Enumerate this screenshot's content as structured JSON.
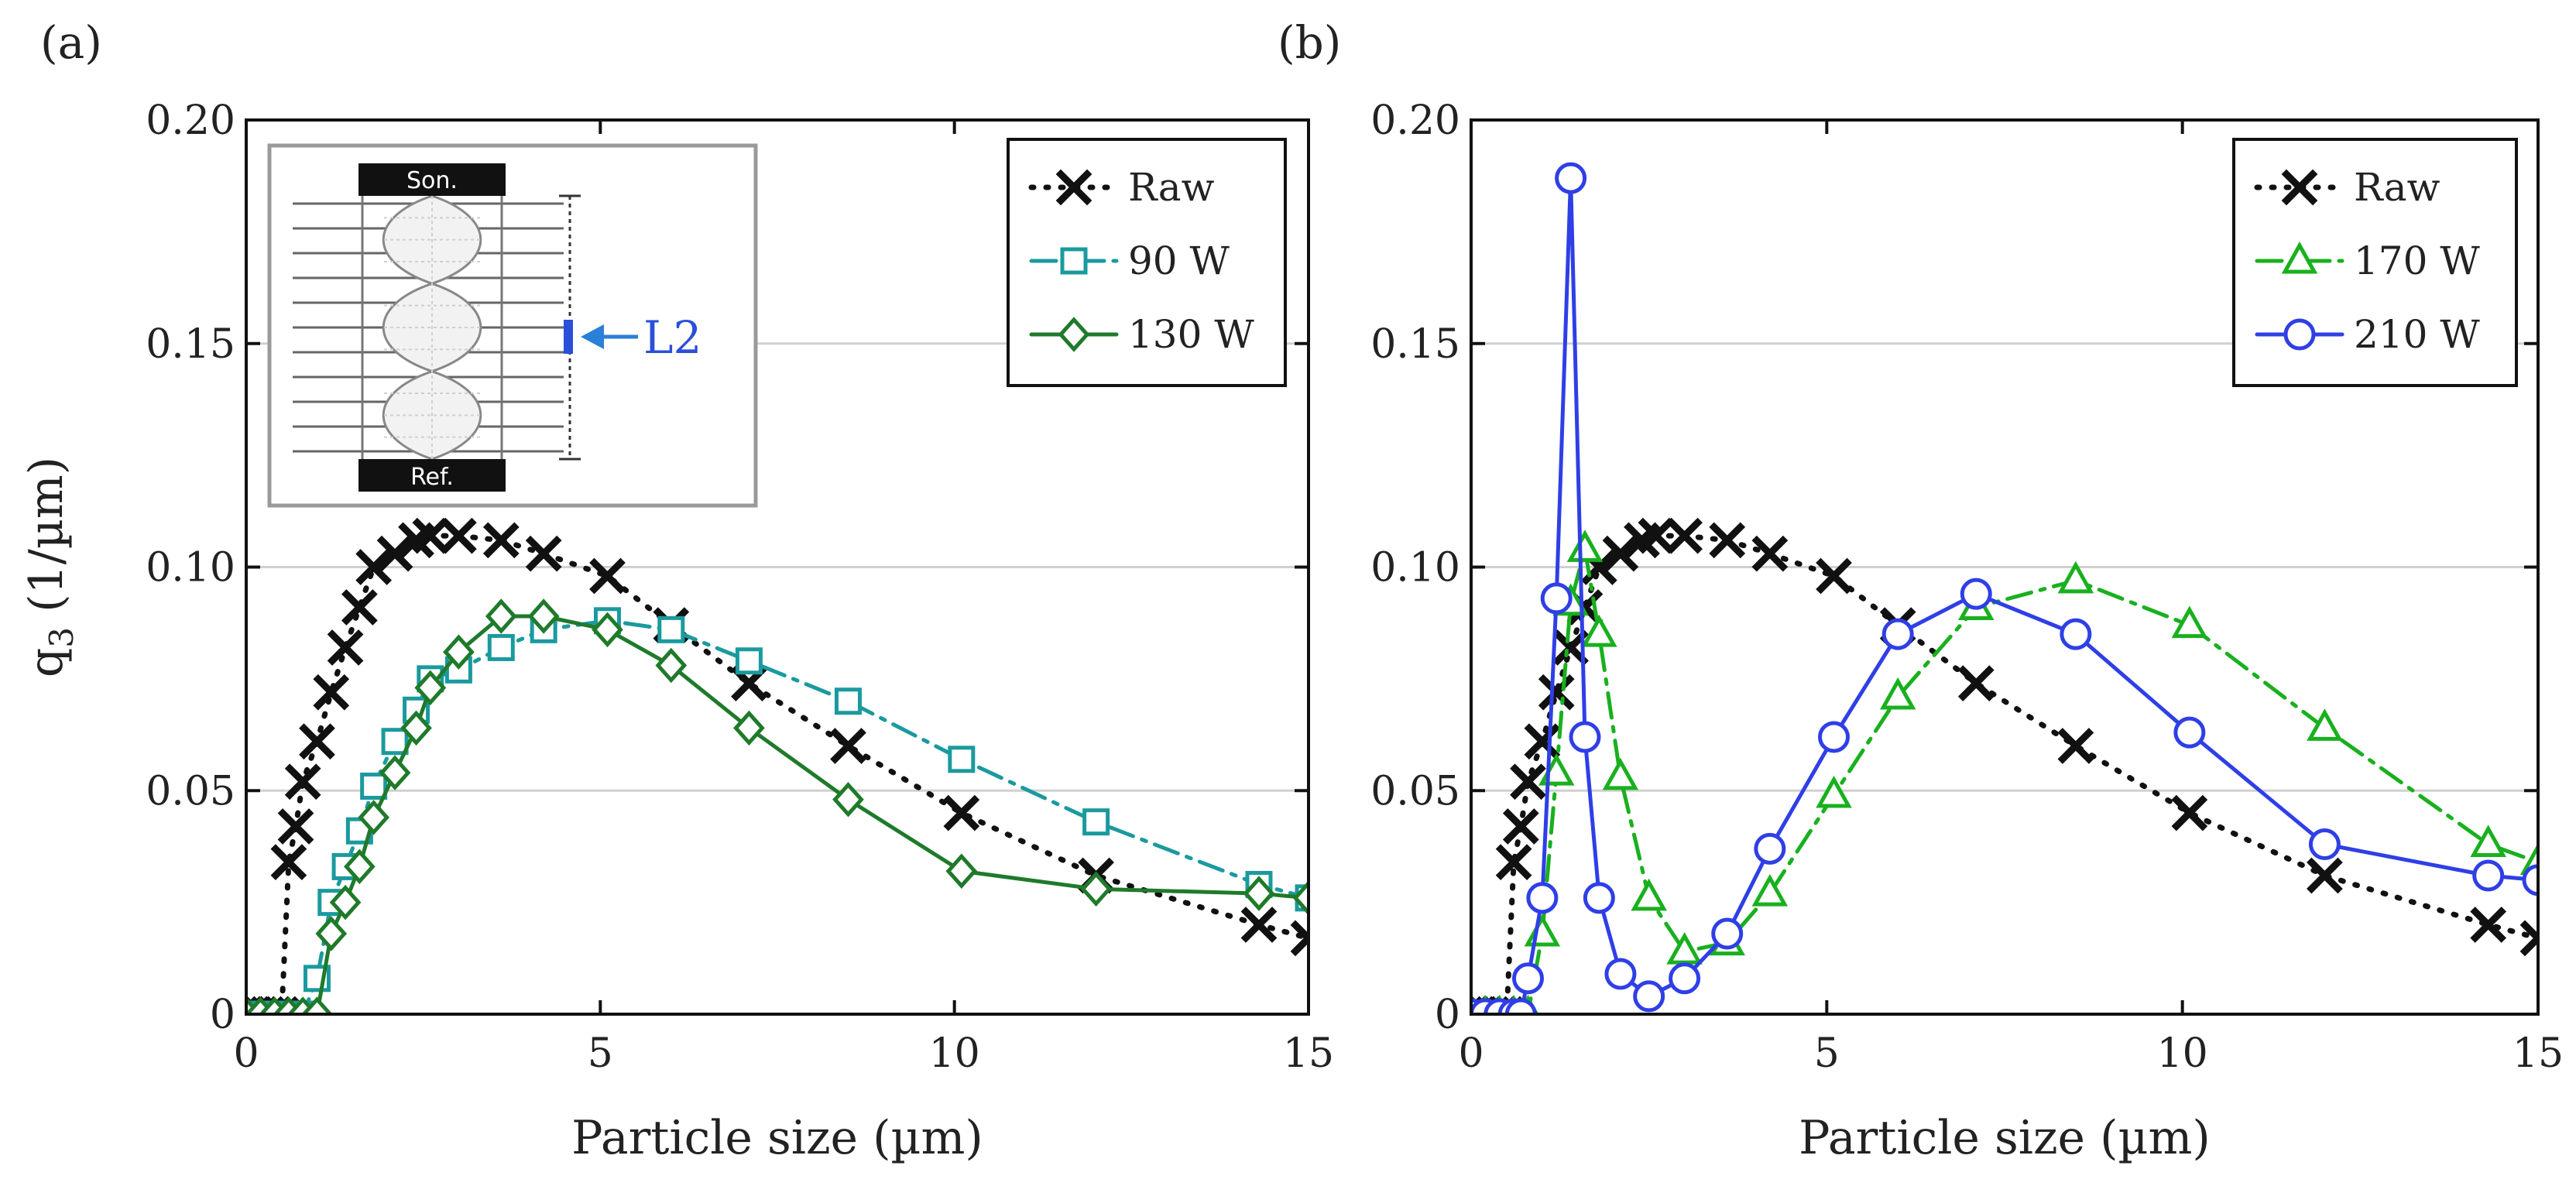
{
  "chart_data": [
    {
      "type": "line",
      "panel_label": "(a)",
      "xlabel": "Particle size (µm)",
      "ylabel": "q",
      "ylabel_sub": "3",
      "ylabel_unit": " (1/µm)",
      "xlim": [
        0,
        15
      ],
      "ylim": [
        0,
        0.2
      ],
      "xticks": [
        "0",
        "5",
        "10",
        "15"
      ],
      "yticks": [
        "0",
        "0.05",
        "0.10",
        "0.15",
        "0.20"
      ],
      "grid": "horizontal",
      "legend": "top-right",
      "inset": {
        "top_label": "Son.",
        "bottom_label": "Ref.",
        "callout": "L2"
      },
      "series": [
        {
          "name": "Raw",
          "color": "#111111",
          "marker": "x",
          "line": "dotted",
          "x": [
            0.0,
            0.1,
            0.2,
            0.3,
            0.4,
            0.5,
            0.6,
            0.7,
            0.8,
            1.0,
            1.2,
            1.4,
            1.6,
            1.8,
            2.1,
            2.4,
            2.6,
            3.0,
            3.6,
            4.2,
            5.1,
            6.0,
            7.1,
            8.5,
            10.1,
            12.0,
            14.3,
            15.0
          ],
          "y": [
            0,
            0,
            0,
            0,
            0,
            0,
            0.034,
            0.042,
            0.052,
            0.061,
            0.072,
            0.082,
            0.091,
            0.1,
            0.103,
            0.106,
            0.107,
            0.107,
            0.106,
            0.103,
            0.098,
            0.087,
            0.074,
            0.06,
            0.045,
            0.031,
            0.02,
            0.017
          ]
        },
        {
          "name": "90 W",
          "color": "#1a9a9e",
          "marker": "square",
          "line": "dashdot",
          "x": [
            0.0,
            0.2,
            0.4,
            0.6,
            0.8,
            1.0,
            1.2,
            1.4,
            1.6,
            1.8,
            2.1,
            2.4,
            2.6,
            3.0,
            3.6,
            4.2,
            5.1,
            6.0,
            7.1,
            8.5,
            10.1,
            12.0,
            14.3,
            15.0
          ],
          "y": [
            0,
            0,
            0,
            0,
            0,
            0.008,
            0.025,
            0.033,
            0.041,
            0.051,
            0.061,
            0.068,
            0.075,
            0.077,
            0.082,
            0.086,
            0.088,
            0.086,
            0.079,
            0.07,
            0.057,
            0.043,
            0.029,
            0.026
          ]
        },
        {
          "name": "130 W",
          "color": "#1f7a2a",
          "marker": "diamond",
          "line": "solid",
          "x": [
            0.0,
            0.2,
            0.4,
            0.6,
            0.8,
            1.0,
            1.2,
            1.4,
            1.6,
            1.8,
            2.1,
            2.4,
            2.6,
            3.0,
            3.6,
            4.2,
            5.1,
            6.0,
            7.1,
            8.5,
            10.1,
            12.0,
            14.3,
            15.0
          ],
          "y": [
            0,
            0,
            0,
            0,
            0,
            0,
            0.018,
            0.025,
            0.033,
            0.044,
            0.054,
            0.064,
            0.073,
            0.081,
            0.089,
            0.089,
            0.086,
            0.078,
            0.064,
            0.048,
            0.032,
            0.028,
            0.027,
            0.026
          ]
        }
      ]
    },
    {
      "type": "line",
      "panel_label": "(b)",
      "xlabel": "Particle size (µm)",
      "xlim": [
        0,
        15
      ],
      "ylim": [
        0,
        0.2
      ],
      "xticks": [
        "0",
        "5",
        "10",
        "15"
      ],
      "yticks": [
        "0",
        "0.05",
        "0.10",
        "0.15",
        "0.20"
      ],
      "grid": "horizontal",
      "legend": "top-right",
      "series": [
        {
          "name": "Raw",
          "color": "#111111",
          "marker": "x",
          "line": "dotted",
          "x": [
            0.0,
            0.1,
            0.2,
            0.3,
            0.4,
            0.5,
            0.6,
            0.7,
            0.8,
            1.0,
            1.2,
            1.4,
            1.6,
            1.8,
            2.1,
            2.4,
            2.6,
            3.0,
            3.6,
            4.2,
            5.1,
            6.0,
            7.1,
            8.5,
            10.1,
            12.0,
            14.3,
            15.0
          ],
          "y": [
            0,
            0,
            0,
            0,
            0,
            0,
            0.034,
            0.042,
            0.052,
            0.061,
            0.072,
            0.082,
            0.091,
            0.1,
            0.103,
            0.106,
            0.107,
            0.107,
            0.106,
            0.103,
            0.098,
            0.087,
            0.074,
            0.06,
            0.045,
            0.031,
            0.02,
            0.017
          ]
        },
        {
          "name": "170 W",
          "color": "#19b01e",
          "marker": "triangle",
          "line": "dashdot",
          "x": [
            0.0,
            0.2,
            0.4,
            0.6,
            0.8,
            1.0,
            1.2,
            1.4,
            1.6,
            1.8,
            2.1,
            2.5,
            3.0,
            3.6,
            4.2,
            5.1,
            6.0,
            7.1,
            8.5,
            10.1,
            12.0,
            14.3,
            15.0
          ],
          "y": [
            0,
            0,
            0,
            0,
            0,
            0.018,
            0.054,
            0.092,
            0.104,
            0.085,
            0.053,
            0.026,
            0.014,
            0.016,
            0.027,
            0.049,
            0.071,
            0.091,
            0.097,
            0.087,
            0.064,
            0.038,
            0.034
          ]
        },
        {
          "name": "210 W",
          "color": "#2f3fe6",
          "marker": "circle",
          "line": "solid",
          "x": [
            0.0,
            0.2,
            0.4,
            0.6,
            0.7,
            0.8,
            1.0,
            1.2,
            1.4,
            1.6,
            1.8,
            2.1,
            2.5,
            3.0,
            3.6,
            4.2,
            5.1,
            6.0,
            7.1,
            8.5,
            10.1,
            12.0,
            14.3,
            15.0
          ],
          "y": [
            0,
            0,
            0,
            0,
            0,
            0.008,
            0.026,
            0.093,
            0.187,
            0.062,
            0.026,
            0.009,
            0.004,
            0.008,
            0.018,
            0.037,
            0.062,
            0.085,
            0.094,
            0.085,
            0.063,
            0.038,
            0.031,
            0.03
          ]
        }
      ]
    }
  ]
}
